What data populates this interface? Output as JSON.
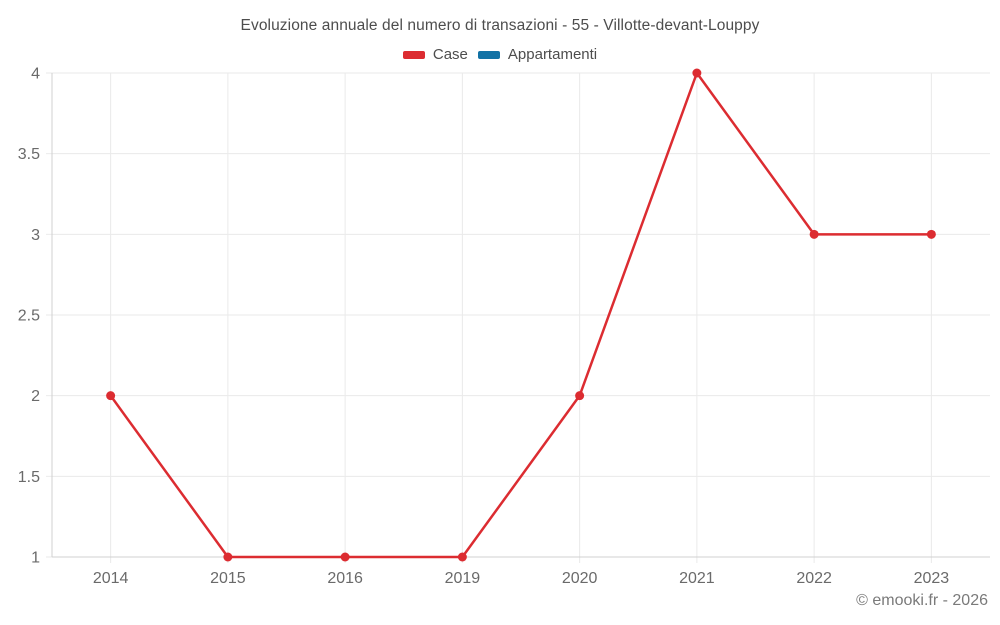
{
  "page": {
    "background": "#ffffff"
  },
  "header": {
    "title": "Evoluzione annuale del numero di transazioni - 55 - Villotte-devant-Louppy"
  },
  "footer": {
    "credit": "© emooki.fr - 2026"
  },
  "chart_data": {
    "type": "line",
    "title": "Evoluzione annuale del numero di transazioni - 55 - Villotte-devant-Louppy",
    "categories": [
      "2014",
      "2015",
      "2016",
      "2019",
      "2020",
      "2021",
      "2022",
      "2023"
    ],
    "series": [
      {
        "name": "Case",
        "color": "#dc2c31",
        "values": [
          2,
          1,
          1,
          1,
          2,
          4,
          3,
          3
        ]
      },
      {
        "name": "Appartamenti",
        "color": "#1272a5",
        "values": []
      }
    ],
    "xlabel": "",
    "ylabel": "",
    "ylim": [
      1,
      4
    ],
    "yticks": [
      1,
      1.5,
      2,
      2.5,
      3,
      3.5,
      4
    ],
    "grid": true,
    "legend_position": "top"
  },
  "colors": {
    "grid": "#eaeaea",
    "axis": "#d0d0d0",
    "tick_label": "#6a6a6a",
    "title": "#4d4d4d",
    "footer": "#7a7a7a"
  }
}
